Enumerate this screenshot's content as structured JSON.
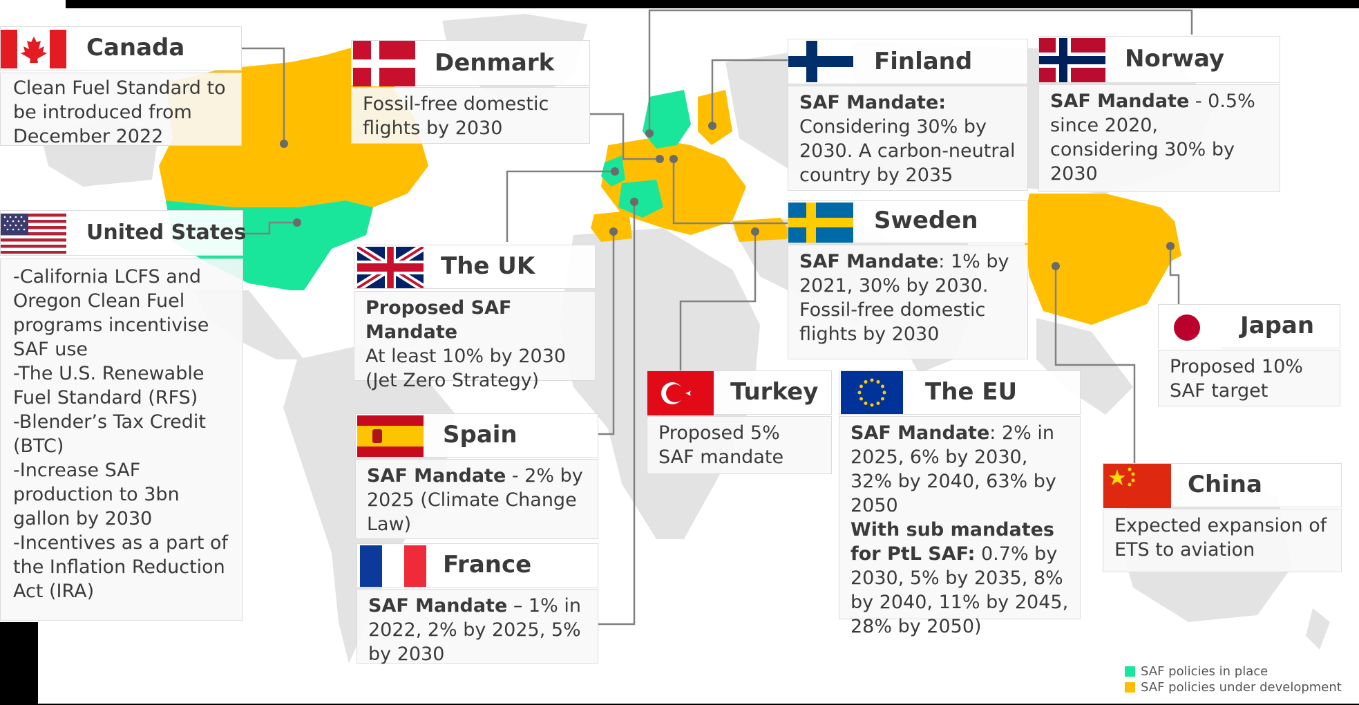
{
  "colors": {
    "in_place": "#19e69a",
    "under_development": "#ffbf00",
    "land": "#e3e3e3",
    "connector": "#808080"
  },
  "legend": {
    "in_place": "SAF policies in place",
    "under_development": "SAF policies under development"
  },
  "countries": {
    "canada": {
      "name": "Canada",
      "text": "Clean Fuel Standard to be introduced from December 2022"
    },
    "us": {
      "name": "United States",
      "lines": [
        "-California LCFS and Oregon Clean Fuel programs incentivise SAF use",
        "-The U.S. Renewable Fuel Standard (RFS)",
        "-Blender’s Tax Credit (BTC)",
        "-Increase SAF production to 3bn gallon by 2030",
        "-Incentives as a part of the Inflation Reduction Act (IRA)"
      ]
    },
    "denmark": {
      "name": "Denmark",
      "text": "Fossil-free domestic flights by 2030"
    },
    "uk": {
      "name": "The UK",
      "bold": "Proposed SAF Mandate",
      "text": "At least 10% by 2030 (Jet Zero Strategy)"
    },
    "spain": {
      "name": "Spain",
      "bold": "SAF Mandate",
      "text": " - 2% by 2025 (Climate Change Law)"
    },
    "france": {
      "name": "France",
      "bold": "SAF Mandate",
      "text": " – 1% in 2022, 2% by 2025, 5% by 2030"
    },
    "finland": {
      "name": "Finland",
      "bold": "SAF Mandate:",
      "text": " Considering 30% by 2030. A carbon-neutral country by 2035"
    },
    "norway": {
      "name": "Norway",
      "bold": "SAF Mandate",
      "text": " - 0.5% since 2020, considering 30% by 2030"
    },
    "sweden": {
      "name": "Sweden",
      "bold": "SAF Mandate",
      "text": ": 1% by 2021, 30% by 2030. Fossil-free domestic flights by 2030"
    },
    "turkey": {
      "name": "Turkey",
      "text": "Proposed 5% SAF mandate"
    },
    "eu": {
      "name": "The EU",
      "bold": "SAF Mandate",
      "text": ": 2% in 2025, 6% by 2030, 32% by 2040, 63% by 2050",
      "bold2": "With sub mandates for PtL SAF:",
      "text2": " 0.7% by 2030, 5% by 2035, 8% by 2040, 11% by 2045, 28% by 2050)"
    },
    "japan": {
      "name": "Japan",
      "text": "Proposed 10% SAF target"
    },
    "china": {
      "name": "China",
      "text": "Expected expansion of ETS to aviation"
    }
  }
}
